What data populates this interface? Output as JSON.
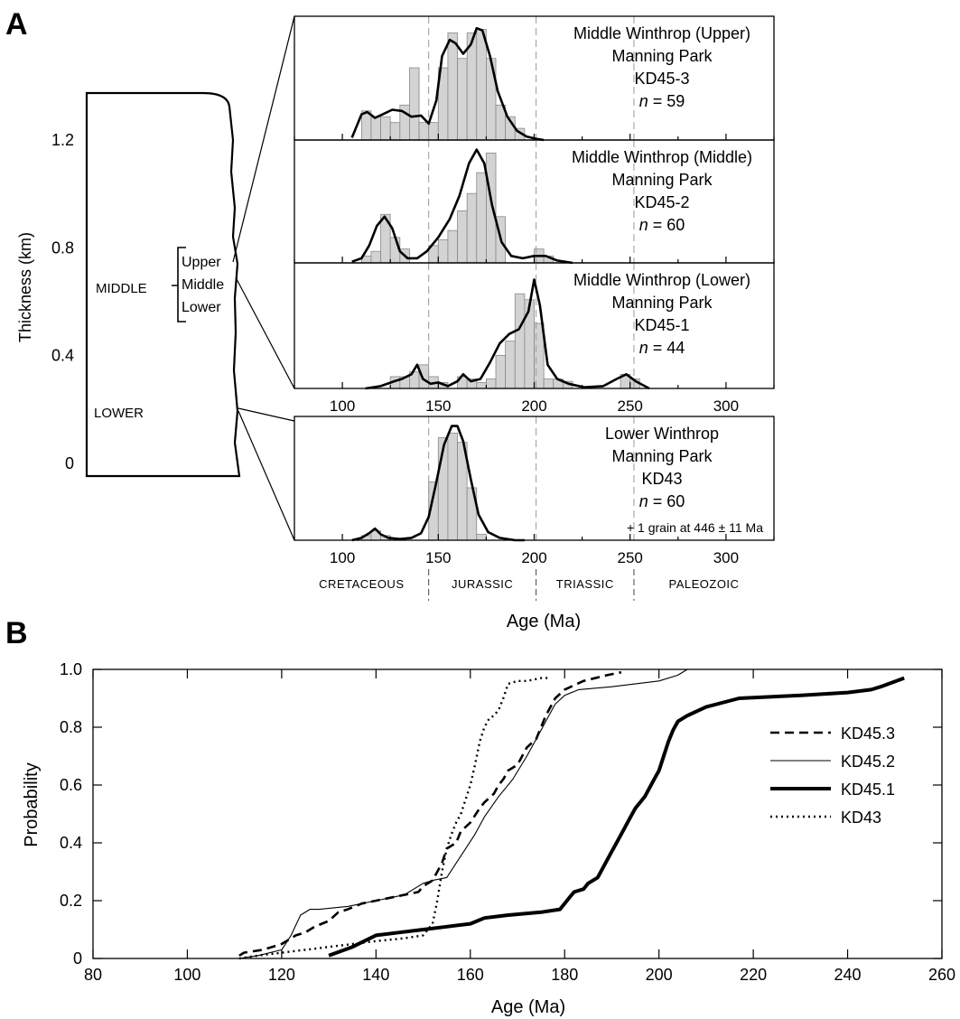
{
  "panelA": {
    "letter": "A",
    "column": {
      "axis_title": "Thickness (km)",
      "ticks": [
        "1.2",
        "0.8",
        "0.4",
        "0"
      ],
      "tick_values": [
        1.2,
        0.8,
        0.4,
        0
      ],
      "unit_labels": {
        "middle": "MIDDLE",
        "lower": "LOWER"
      },
      "bracket_labels": [
        "Upper",
        "Middle",
        "Lower"
      ]
    },
    "xaxis": {
      "label": "Age (Ma)",
      "ticks": [
        100,
        150,
        200,
        250,
        300
      ],
      "range": [
        75,
        325
      ]
    },
    "era_boundaries": [
      145,
      201,
      252
    ],
    "eras": [
      "CRETACEOUS",
      "JURASSIC",
      "TRIASSIC",
      "PALEOZOIC"
    ],
    "subpanels": [
      {
        "title": "Middle Winthrop (Upper)",
        "location": "Manning Park",
        "sample": "KD45-3",
        "n_label": "n",
        "n_value": "= 59",
        "note": ""
      },
      {
        "title": "Middle Winthrop (Middle)",
        "location": "Manning Park",
        "sample": "KD45-2",
        "n_label": "n",
        "n_value": "= 60",
        "note": ""
      },
      {
        "title": "Middle Winthrop (Lower)",
        "location": "Manning Park",
        "sample": "KD45-1",
        "n_label": "n",
        "n_value": "= 44",
        "note": ""
      },
      {
        "title": "Lower Winthrop",
        "location": "Manning Park",
        "sample": "KD43",
        "n_label": "n",
        "n_value": "= 60",
        "note": "+ 1 grain at 446 ± 11 Ma"
      }
    ]
  },
  "panelB": {
    "letter": "B",
    "xlabel": "Age (Ma)",
    "ylabel": "Probability",
    "xticks": [
      "80",
      "100",
      "120",
      "140",
      "160",
      "180",
      "200",
      "220",
      "240",
      "260"
    ],
    "yticks": [
      "0",
      "0.2",
      "0.4",
      "0.6",
      "0.8",
      "1.0"
    ],
    "legend": [
      "KD45.3",
      "KD45.2",
      "KD45.1",
      "KD43"
    ]
  },
  "chart_data": [
    {
      "type": "bar",
      "title": "Middle Winthrop (Upper) Manning Park KD45-3 n = 59",
      "xlabel": "Age (Ma)",
      "xlim": [
        75,
        325
      ],
      "bin_width": 5,
      "bins_start": [
        110,
        115,
        120,
        125,
        130,
        135,
        140,
        145,
        150,
        155,
        160,
        165,
        170,
        175,
        180,
        185,
        190
      ],
      "counts": [
        0.25,
        0.2,
        0.2,
        0.15,
        0.3,
        0.62,
        0.15,
        0.15,
        0.62,
        0.92,
        0.7,
        0.92,
        0.95,
        0.7,
        0.3,
        0.2,
        0.1
      ],
      "pdf_x": [
        105,
        110,
        113,
        117,
        121,
        126,
        131,
        136,
        141,
        145,
        149,
        152,
        156,
        159,
        163,
        167,
        170,
        173,
        177,
        181,
        186,
        191,
        196,
        201,
        205
      ],
      "pdf_y": [
        0.02,
        0.22,
        0.24,
        0.19,
        0.22,
        0.26,
        0.25,
        0.2,
        0.21,
        0.14,
        0.34,
        0.72,
        0.86,
        0.83,
        0.74,
        0.82,
        0.96,
        0.94,
        0.72,
        0.42,
        0.2,
        0.08,
        0.03,
        0.01,
        0.0
      ]
    },
    {
      "type": "bar",
      "title": "Middle Winthrop (Middle) Manning Park KD45-2 n = 60",
      "xlabel": "Age (Ma)",
      "xlim": [
        75,
        325
      ],
      "bin_width": 5,
      "bins_start": [
        110,
        115,
        120,
        125,
        130,
        145,
        150,
        155,
        160,
        165,
        170,
        175,
        180,
        200,
        205
      ],
      "counts": [
        0.06,
        0.1,
        0.42,
        0.22,
        0.12,
        0.15,
        0.2,
        0.28,
        0.45,
        0.6,
        0.78,
        0.95,
        0.4,
        0.12,
        0.06
      ],
      "pdf_x": [
        105,
        110,
        114,
        118,
        122,
        126,
        130,
        134,
        139,
        144,
        150,
        156,
        161,
        166,
        170,
        174,
        178,
        183,
        188,
        194,
        200,
        206,
        212,
        220
      ],
      "pdf_y": [
        0.01,
        0.04,
        0.15,
        0.32,
        0.4,
        0.3,
        0.1,
        0.04,
        0.04,
        0.1,
        0.22,
        0.38,
        0.58,
        0.86,
        0.98,
        0.86,
        0.5,
        0.18,
        0.06,
        0.04,
        0.06,
        0.06,
        0.02,
        0.0
      ]
    },
    {
      "type": "bar",
      "title": "Middle Winthrop (Lower) Manning Park KD45-1 n = 44",
      "xlabel": "Age (Ma)",
      "xlim": [
        75,
        325
      ],
      "bin_width": 5,
      "bins_start": [
        125,
        130,
        135,
        140,
        145,
        150,
        160,
        165,
        170,
        175,
        180,
        185,
        190,
        195,
        200,
        205,
        210,
        215,
        245,
        250
      ],
      "counts": [
        0.1,
        0.1,
        0.14,
        0.2,
        0.1,
        0.05,
        0.1,
        0.08,
        0.05,
        0.08,
        0.28,
        0.4,
        0.8,
        0.75,
        0.55,
        0.08,
        0.08,
        0.06,
        0.12,
        0.08
      ],
      "pdf_x": [
        112,
        120,
        127,
        131,
        136,
        139,
        142,
        146,
        150,
        155,
        160,
        163,
        167,
        172,
        177,
        182,
        187,
        192,
        197,
        200,
        203,
        207,
        212,
        218,
        226,
        236,
        243,
        248,
        253,
        260
      ],
      "pdf_y": [
        0.0,
        0.02,
        0.06,
        0.08,
        0.12,
        0.2,
        0.08,
        0.04,
        0.05,
        0.02,
        0.06,
        0.12,
        0.06,
        0.08,
        0.22,
        0.38,
        0.46,
        0.5,
        0.65,
        0.92,
        0.7,
        0.2,
        0.08,
        0.04,
        0.01,
        0.02,
        0.08,
        0.12,
        0.06,
        0.0
      ]
    },
    {
      "type": "bar",
      "title": "Lower Winthrop Manning Park KD43 n = 60",
      "xlabel": "Age (Ma)",
      "xlim": [
        75,
        325
      ],
      "bin_width": 5,
      "bins_start": [
        110,
        115,
        120,
        145,
        150,
        155,
        160,
        165,
        170
      ],
      "counts": [
        0.04,
        0.08,
        0.04,
        0.5,
        0.88,
        0.92,
        0.84,
        0.45,
        0.05
      ],
      "pdf_x": [
        105,
        110,
        114,
        117,
        120,
        124,
        130,
        136,
        141,
        145,
        149,
        153,
        157,
        160,
        163,
        167,
        171,
        176,
        182,
        190,
        195
      ],
      "pdf_y": [
        0.0,
        0.02,
        0.06,
        0.1,
        0.05,
        0.02,
        0.01,
        0.02,
        0.06,
        0.2,
        0.5,
        0.82,
        0.98,
        0.98,
        0.85,
        0.52,
        0.22,
        0.07,
        0.02,
        0.0,
        0.0
      ]
    },
    {
      "type": "line",
      "title": "",
      "xlabel": "Age (Ma)",
      "ylabel": "Probability",
      "xlim": [
        80,
        260
      ],
      "ylim": [
        0,
        1.0
      ],
      "grid": false,
      "legend_position": "right",
      "series": [
        {
          "name": "KD45.3",
          "style": "dashed",
          "x": [
            111,
            112,
            116,
            120,
            123,
            125,
            127,
            130,
            132,
            134,
            137,
            143,
            149,
            150,
            152,
            153,
            154,
            155,
            157,
            158,
            160,
            162,
            163,
            165,
            166,
            167,
            168,
            170,
            171,
            172,
            174,
            176,
            178,
            180,
            184,
            189,
            192
          ],
          "y": [
            0.01,
            0.02,
            0.03,
            0.05,
            0.08,
            0.09,
            0.11,
            0.13,
            0.16,
            0.17,
            0.19,
            0.21,
            0.23,
            0.25,
            0.27,
            0.3,
            0.33,
            0.38,
            0.4,
            0.44,
            0.47,
            0.52,
            0.54,
            0.57,
            0.6,
            0.62,
            0.65,
            0.67,
            0.7,
            0.73,
            0.76,
            0.84,
            0.9,
            0.93,
            0.96,
            0.98,
            0.99
          ]
        },
        {
          "name": "KD45.2",
          "style": "thin",
          "x": [
            111,
            115,
            120,
            122,
            124,
            126,
            128,
            134,
            140,
            146,
            148,
            150,
            152,
            155,
            157,
            159,
            161,
            163,
            166,
            169,
            172,
            174,
            176,
            178,
            180,
            183,
            190,
            200,
            204,
            206
          ],
          "y": [
            0.0,
            0.01,
            0.03,
            0.08,
            0.15,
            0.17,
            0.17,
            0.18,
            0.2,
            0.22,
            0.24,
            0.26,
            0.27,
            0.28,
            0.33,
            0.38,
            0.43,
            0.49,
            0.56,
            0.62,
            0.7,
            0.76,
            0.82,
            0.88,
            0.91,
            0.93,
            0.94,
            0.96,
            0.98,
            1.0
          ]
        },
        {
          "name": "KD45.1",
          "style": "thick",
          "x": [
            130,
            135,
            140,
            145,
            150,
            155,
            160,
            163,
            168,
            175,
            179,
            180,
            181,
            182,
            184,
            185,
            187,
            188,
            189,
            190,
            191,
            192,
            193,
            194,
            195,
            196,
            197,
            198,
            199,
            200,
            201,
            202,
            203,
            204,
            206,
            210,
            217,
            230,
            240,
            245,
            247,
            252
          ],
          "y": [
            0.01,
            0.04,
            0.08,
            0.09,
            0.1,
            0.11,
            0.12,
            0.14,
            0.15,
            0.16,
            0.17,
            0.19,
            0.21,
            0.23,
            0.24,
            0.26,
            0.28,
            0.31,
            0.34,
            0.37,
            0.4,
            0.43,
            0.46,
            0.49,
            0.52,
            0.54,
            0.56,
            0.59,
            0.62,
            0.65,
            0.7,
            0.75,
            0.79,
            0.82,
            0.84,
            0.87,
            0.9,
            0.91,
            0.92,
            0.93,
            0.94,
            0.97
          ]
        },
        {
          "name": "KD43",
          "style": "dotted",
          "x": [
            111,
            115,
            120,
            125,
            130,
            135,
            140,
            146,
            150,
            152,
            153,
            154,
            155,
            156,
            157,
            158,
            159,
            160,
            161,
            162,
            163,
            164,
            165,
            166,
            167,
            168,
            170,
            172,
            175,
            177
          ],
          "y": [
            0.0,
            0.01,
            0.02,
            0.03,
            0.04,
            0.05,
            0.06,
            0.07,
            0.08,
            0.12,
            0.2,
            0.3,
            0.38,
            0.43,
            0.47,
            0.5,
            0.55,
            0.6,
            0.67,
            0.75,
            0.8,
            0.83,
            0.84,
            0.86,
            0.9,
            0.95,
            0.96,
            0.96,
            0.97,
            0.97
          ]
        }
      ]
    }
  ]
}
